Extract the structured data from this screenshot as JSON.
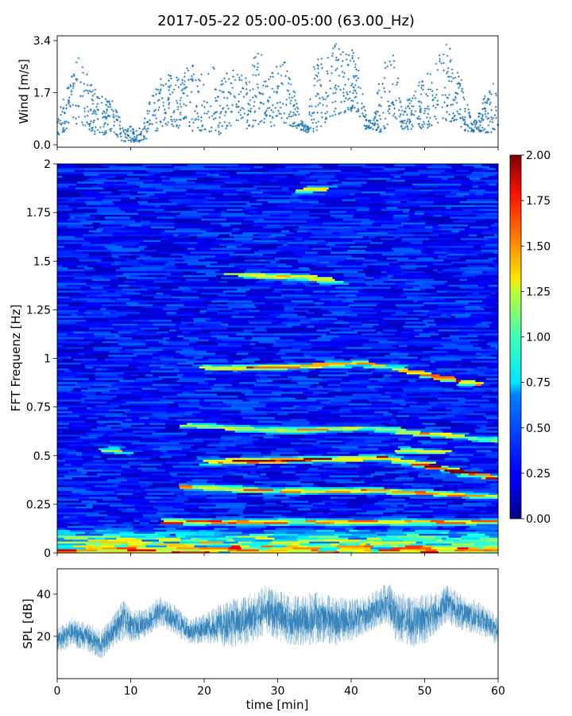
{
  "figure": {
    "title": "2017-05-22 05:00-05:00 (63.00_Hz)"
  },
  "chart_data": [
    {
      "id": "wind",
      "type": "scatter",
      "ylabel": "Wind [m/s]",
      "xlabel": "",
      "xlim": [
        0,
        60
      ],
      "ylim": [
        0,
        3.4
      ],
      "yticks": [
        0.0,
        1.7,
        3.4
      ],
      "ytick_labels": [
        "0.0",
        "1.7",
        "3.4"
      ],
      "marker_color": "#1f77b4",
      "marker": "+",
      "envelope_x": [
        0,
        2,
        3,
        4,
        5,
        6,
        7,
        8,
        9,
        10,
        11,
        12,
        13,
        14,
        15,
        16,
        17,
        18,
        19,
        20,
        21,
        22,
        23,
        24,
        25,
        26,
        27,
        28,
        29,
        30,
        31,
        32,
        33,
        34,
        35,
        36,
        37,
        38,
        39,
        40,
        41,
        42,
        43,
        44,
        45,
        46,
        47,
        48,
        49,
        50,
        51,
        52,
        53,
        54,
        55,
        56,
        57,
        58,
        59,
        60
      ],
      "envelope_low": [
        0.3,
        0.5,
        0.7,
        0.6,
        0.3,
        0.3,
        0.4,
        0.3,
        0.1,
        0.1,
        0.1,
        0.1,
        0.4,
        0.5,
        0.6,
        0.5,
        0.5,
        0.5,
        0.4,
        0.5,
        0.4,
        0.3,
        0.5,
        0.5,
        0.6,
        0.5,
        0.6,
        0.7,
        0.6,
        0.6,
        0.7,
        0.6,
        0.5,
        0.4,
        0.4,
        0.6,
        0.9,
        1.0,
        1.0,
        1.1,
        1.0,
        0.5,
        0.5,
        0.4,
        0.6,
        0.9,
        0.5,
        0.5,
        0.5,
        0.5,
        0.6,
        0.7,
        0.8,
        0.7,
        0.5,
        0.4,
        0.4,
        0.4,
        0.4,
        0.5
      ],
      "envelope_high": [
        1.4,
        2.4,
        2.9,
        2.4,
        2.0,
        1.6,
        1.6,
        1.3,
        0.6,
        0.6,
        0.5,
        0.9,
        1.8,
        2.2,
        2.4,
        2.2,
        2.2,
        2.8,
        2.6,
        2.2,
        2.8,
        2.0,
        2.4,
        2.6,
        2.4,
        2.2,
        3.0,
        3.1,
        2.4,
        2.6,
        2.7,
        2.2,
        0.9,
        0.6,
        2.8,
        3.0,
        3.2,
        3.3,
        3.2,
        3.1,
        3.0,
        1.0,
        0.7,
        2.5,
        3.0,
        2.9,
        1.2,
        1.6,
        2.0,
        2.2,
        2.6,
        3.0,
        3.4,
        2.8,
        2.2,
        1.2,
        0.8,
        1.5,
        2.1,
        2.0
      ]
    },
    {
      "id": "spectrogram",
      "type": "heatmap",
      "ylabel": "FFT Frequenz [Hz]",
      "xlabel": "",
      "xlim": [
        0,
        60
      ],
      "ylim": [
        0,
        2
      ],
      "yticks": [
        0,
        0.25,
        0.5,
        0.75,
        1,
        1.25,
        1.5,
        1.75,
        2
      ],
      "ytick_labels": [
        "0",
        "0.25",
        "0.5",
        "0.75",
        "1",
        "1.25",
        "1.5",
        "1.75",
        "2"
      ],
      "colormap": "jet",
      "colorbar": {
        "vmin": 0.0,
        "vmax": 2.0,
        "ticks": [
          0.0,
          0.25,
          0.5,
          0.75,
          1.0,
          1.25,
          1.5,
          1.75,
          2.0
        ],
        "tick_labels": [
          "0.00",
          "0.25",
          "0.50",
          "0.75",
          "1.00",
          "1.25",
          "1.50",
          "1.75",
          "2.00"
        ]
      },
      "background_level": 0.28,
      "ridges": [
        {
          "freq": [
            0.16,
            0.16,
            0.16,
            0.16
          ],
          "t": [
            0,
            20,
            40,
            60
          ],
          "t_range": [
            15,
            60
          ],
          "level": 1.55
        },
        {
          "freq": [
            0.34,
            0.32,
            0.32,
            0.29
          ],
          "t": [
            17,
            30,
            45,
            60
          ],
          "t_range": [
            17,
            60
          ],
          "level": 1.4
        },
        {
          "freq": [
            0.47,
            0.48,
            0.49,
            0.38
          ],
          "t": [
            20,
            35,
            45,
            60
          ],
          "t_range": [
            20,
            60
          ],
          "level": 1.8
        },
        {
          "freq": [
            0.66,
            0.63,
            0.64,
            0.58
          ],
          "t": [
            17,
            30,
            43,
            60
          ],
          "t_range": [
            17,
            60
          ],
          "level": 1.2
        },
        {
          "freq": [
            0.95,
            0.96,
            0.98,
            0.86
          ],
          "t": [
            19,
            33,
            42,
            58
          ],
          "t_range": [
            19,
            58
          ],
          "level": 1.5
        },
        {
          "freq": [
            1.43,
            1.42,
            1.4
          ],
          "t": [
            24,
            33,
            38
          ],
          "t_range": [
            24,
            38
          ],
          "level": 1.3
        },
        {
          "freq": [
            1.87,
            1.87
          ],
          "t": [
            33,
            37
          ],
          "t_range": [
            33,
            37
          ],
          "level": 1.1
        },
        {
          "freq": [
            0.53,
            0.53
          ],
          "t": [
            7,
            10
          ],
          "t_range": [
            7,
            10
          ],
          "level": 1.1
        },
        {
          "freq": [
            0.53,
            0.52
          ],
          "t": [
            47,
            53
          ],
          "t_range": [
            47,
            53
          ],
          "level": 1.1
        }
      ],
      "low_freq_band": {
        "freq_max": 0.14,
        "level": 1.5
      }
    },
    {
      "id": "spl",
      "type": "line",
      "ylabel": "SPL [dB]",
      "xlabel": "time [min]",
      "xlim": [
        0,
        60
      ],
      "ylim": [
        0,
        52
      ],
      "yticks": [
        20,
        40
      ],
      "ytick_labels": [
        "20",
        "40"
      ],
      "xticks": [
        0,
        10,
        20,
        30,
        40,
        50,
        60
      ],
      "xtick_labels": [
        "0",
        "10",
        "20",
        "30",
        "40",
        "50",
        "60"
      ],
      "line_color": "#1f77b4",
      "x": [
        0,
        2,
        4,
        6,
        8,
        9,
        10,
        12,
        14,
        16,
        18,
        20,
        22,
        24,
        26,
        28,
        30,
        32,
        34,
        36,
        38,
        40,
        42,
        44,
        45,
        46,
        48,
        50,
        52,
        53,
        54,
        56,
        58,
        60
      ],
      "mean": [
        18,
        22,
        20,
        16,
        24,
        28,
        25,
        26,
        32,
        28,
        22,
        24,
        25,
        26,
        28,
        32,
        30,
        27,
        28,
        29,
        27,
        28,
        30,
        34,
        36,
        30,
        27,
        28,
        32,
        36,
        33,
        30,
        28,
        22
      ],
      "spread": [
        6,
        7,
        7,
        7,
        8,
        10,
        8,
        7,
        7,
        7,
        6,
        7,
        10,
        12,
        12,
        12,
        12,
        12,
        13,
        12,
        12,
        10,
        9,
        9,
        10,
        12,
        12,
        12,
        9,
        9,
        9,
        8,
        8,
        7
      ]
    }
  ]
}
